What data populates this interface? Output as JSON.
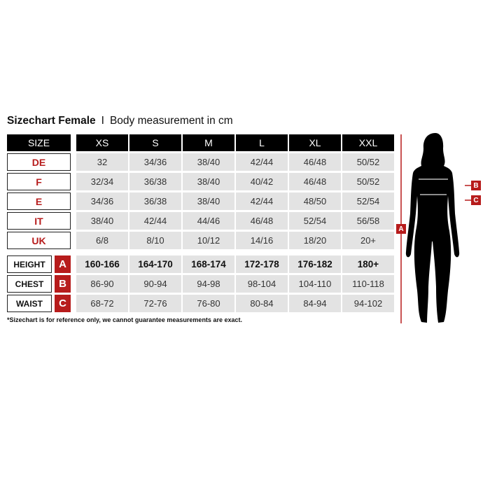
{
  "title": {
    "bold": "Sizechart Female",
    "separator": "I",
    "subtitle": "Body measurement in cm"
  },
  "header": {
    "label": "SIZE",
    "sizes": [
      "XS",
      "S",
      "M",
      "L",
      "XL",
      "XXL"
    ]
  },
  "size_rows": [
    {
      "label": "DE",
      "values": [
        "32",
        "34/36",
        "38/40",
        "42/44",
        "46/48",
        "50/52"
      ]
    },
    {
      "label": "F",
      "values": [
        "32/34",
        "36/38",
        "38/40",
        "40/42",
        "46/48",
        "50/52"
      ]
    },
    {
      "label": "E",
      "values": [
        "34/36",
        "36/38",
        "38/40",
        "42/44",
        "48/50",
        "52/54"
      ]
    },
    {
      "label": "IT",
      "values": [
        "38/40",
        "42/44",
        "44/46",
        "46/48",
        "52/54",
        "56/58"
      ]
    },
    {
      "label": "UK",
      "values": [
        "6/8",
        "8/10",
        "10/12",
        "14/16",
        "18/20",
        "20+"
      ]
    }
  ],
  "measure_rows": [
    {
      "label": "HEIGHT",
      "letter": "A",
      "values": [
        "160-166",
        "164-170",
        "168-174",
        "172-178",
        "176-182",
        "180+"
      ]
    },
    {
      "label": "CHEST",
      "letter": "B",
      "values": [
        "86-90",
        "90-94",
        "94-98",
        "98-104",
        "104-110",
        "110-118"
      ]
    },
    {
      "label": "WAIST",
      "letter": "C",
      "values": [
        "68-72",
        "72-76",
        "76-80",
        "80-84",
        "84-94",
        "94-102"
      ]
    }
  ],
  "note": "*Sizechart is for reference only, we cannot guarantee measurements are exact.",
  "figure": {
    "height_marker": "A",
    "chest_marker": "B",
    "waist_marker": "C"
  },
  "colors": {
    "accent": "#b71c1c",
    "header": "#000000",
    "cell": "#e3e3e3"
  }
}
